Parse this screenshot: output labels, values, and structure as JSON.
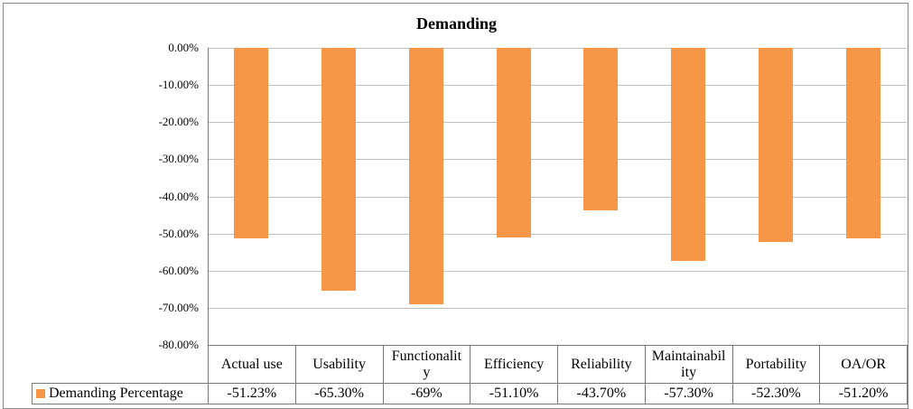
{
  "chart_data": {
    "type": "bar",
    "title": "Demanding",
    "categories": [
      "Actual use",
      "Usability",
      "Functionality",
      "Efficiency",
      "Reliability",
      "Maintainability",
      "Portability",
      "OA/OR"
    ],
    "series": [
      {
        "name": "Demanding Percentage",
        "color": "#f79646",
        "values": [
          -51.23,
          -65.3,
          -69,
          -51.1,
          -43.7,
          -57.3,
          -52.3,
          -51.2
        ],
        "value_labels": [
          "-51.23%",
          "-65.30%",
          "-69%",
          "-51.10%",
          "-43.70%",
          "-57.30%",
          "-52.30%",
          "-51.20%"
        ]
      }
    ],
    "ylim": [
      -80,
      0
    ],
    "yticks": [
      {
        "value": 0,
        "label": "0.00%"
      },
      {
        "value": -10,
        "label": "-10.00%"
      },
      {
        "value": -20,
        "label": "-20.00%"
      },
      {
        "value": -30,
        "label": "-30.00%"
      },
      {
        "value": -40,
        "label": "-40.00%"
      },
      {
        "value": -50,
        "label": "-50.00%"
      },
      {
        "value": -60,
        "label": "-60.00%"
      },
      {
        "value": -70,
        "label": "-70.00%"
      },
      {
        "value": -80,
        "label": "-80.00%"
      }
    ],
    "grid": true
  }
}
